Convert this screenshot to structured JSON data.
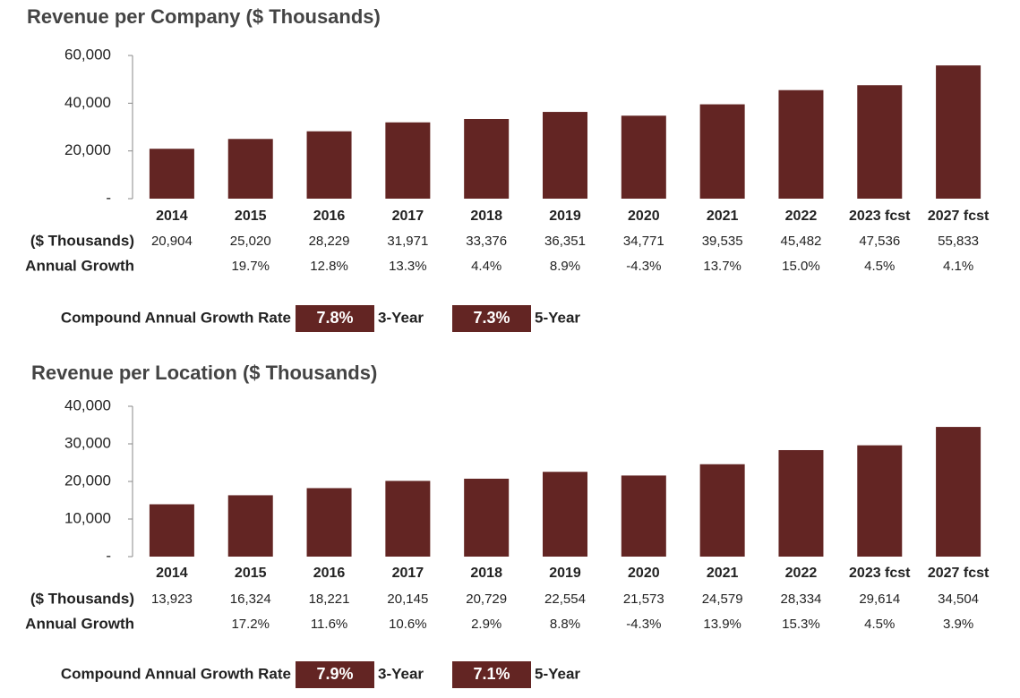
{
  "chart_data": [
    {
      "type": "bar",
      "title": "Revenue per Company ($ Thousands)",
      "color": "#632523",
      "categories": [
        "2014",
        "2015",
        "2016",
        "2017",
        "2018",
        "2019",
        "2020",
        "2021",
        "2022",
        "2023 fcst",
        "2027 fcst"
      ],
      "values": [
        20904,
        25020,
        28229,
        31971,
        33376,
        36351,
        34771,
        39535,
        45482,
        47536,
        55833
      ],
      "value_labels": [
        "20,904",
        "25,020",
        "28,229",
        "31,971",
        "33,376",
        "36,351",
        "34,771",
        "39,535",
        "45,482",
        "47,536",
        "55,833"
      ],
      "ylim": [
        0,
        60000
      ],
      "yticks": [
        {
          "value": 0,
          "label": "-"
        },
        {
          "value": 20000,
          "label": "20,000"
        },
        {
          "value": 40000,
          "label": "40,000"
        },
        {
          "value": 60000,
          "label": "60,000"
        }
      ],
      "value_row_label": "($ Thousands)",
      "growth": {
        "label": "Annual Growth",
        "values": [
          null,
          19.7,
          12.8,
          13.3,
          4.4,
          8.9,
          -4.3,
          13.7,
          15.0,
          4.5,
          4.1
        ],
        "value_labels": [
          null,
          "19.7%",
          "12.8%",
          "13.3%",
          "4.4%",
          "8.9%",
          "-4.3%",
          "13.7%",
          "15.0%",
          "4.5%",
          "4.1%"
        ]
      },
      "cagr": {
        "label": "Compound Annual Growth Rate",
        "items": [
          {
            "value": 7.8,
            "label": "7.8%",
            "period": "3-Year"
          },
          {
            "value": 7.3,
            "label": "7.3%",
            "period": "5-Year"
          }
        ]
      }
    },
    {
      "type": "bar",
      "title": "Revenue per Location ($ Thousands)",
      "color": "#632523",
      "categories": [
        "2014",
        "2015",
        "2016",
        "2017",
        "2018",
        "2019",
        "2020",
        "2021",
        "2022",
        "2023 fcst",
        "2027 fcst"
      ],
      "values": [
        13923,
        16324,
        18221,
        20145,
        20729,
        22554,
        21573,
        24579,
        28334,
        29614,
        34504
      ],
      "value_labels": [
        "13,923",
        "16,324",
        "18,221",
        "20,145",
        "20,729",
        "22,554",
        "21,573",
        "24,579",
        "28,334",
        "29,614",
        "34,504"
      ],
      "ylim": [
        0,
        40000
      ],
      "yticks": [
        {
          "value": 0,
          "label": "-"
        },
        {
          "value": 10000,
          "label": "10,000"
        },
        {
          "value": 20000,
          "label": "20,000"
        },
        {
          "value": 30000,
          "label": "30,000"
        },
        {
          "value": 40000,
          "label": "40,000"
        }
      ],
      "value_row_label": "($ Thousands)",
      "growth": {
        "label": "Annual Growth",
        "values": [
          null,
          17.2,
          11.6,
          10.6,
          2.9,
          8.8,
          -4.3,
          13.9,
          15.3,
          4.5,
          3.9
        ],
        "value_labels": [
          null,
          "17.2%",
          "11.6%",
          "10.6%",
          "2.9%",
          "8.8%",
          "-4.3%",
          "13.9%",
          "15.3%",
          "4.5%",
          "3.9%"
        ]
      },
      "cagr": {
        "label": "Compound Annual Growth Rate",
        "items": [
          {
            "value": 7.9,
            "label": "7.9%",
            "period": "3-Year"
          },
          {
            "value": 7.1,
            "label": "7.1%",
            "period": "5-Year"
          }
        ]
      }
    }
  ]
}
